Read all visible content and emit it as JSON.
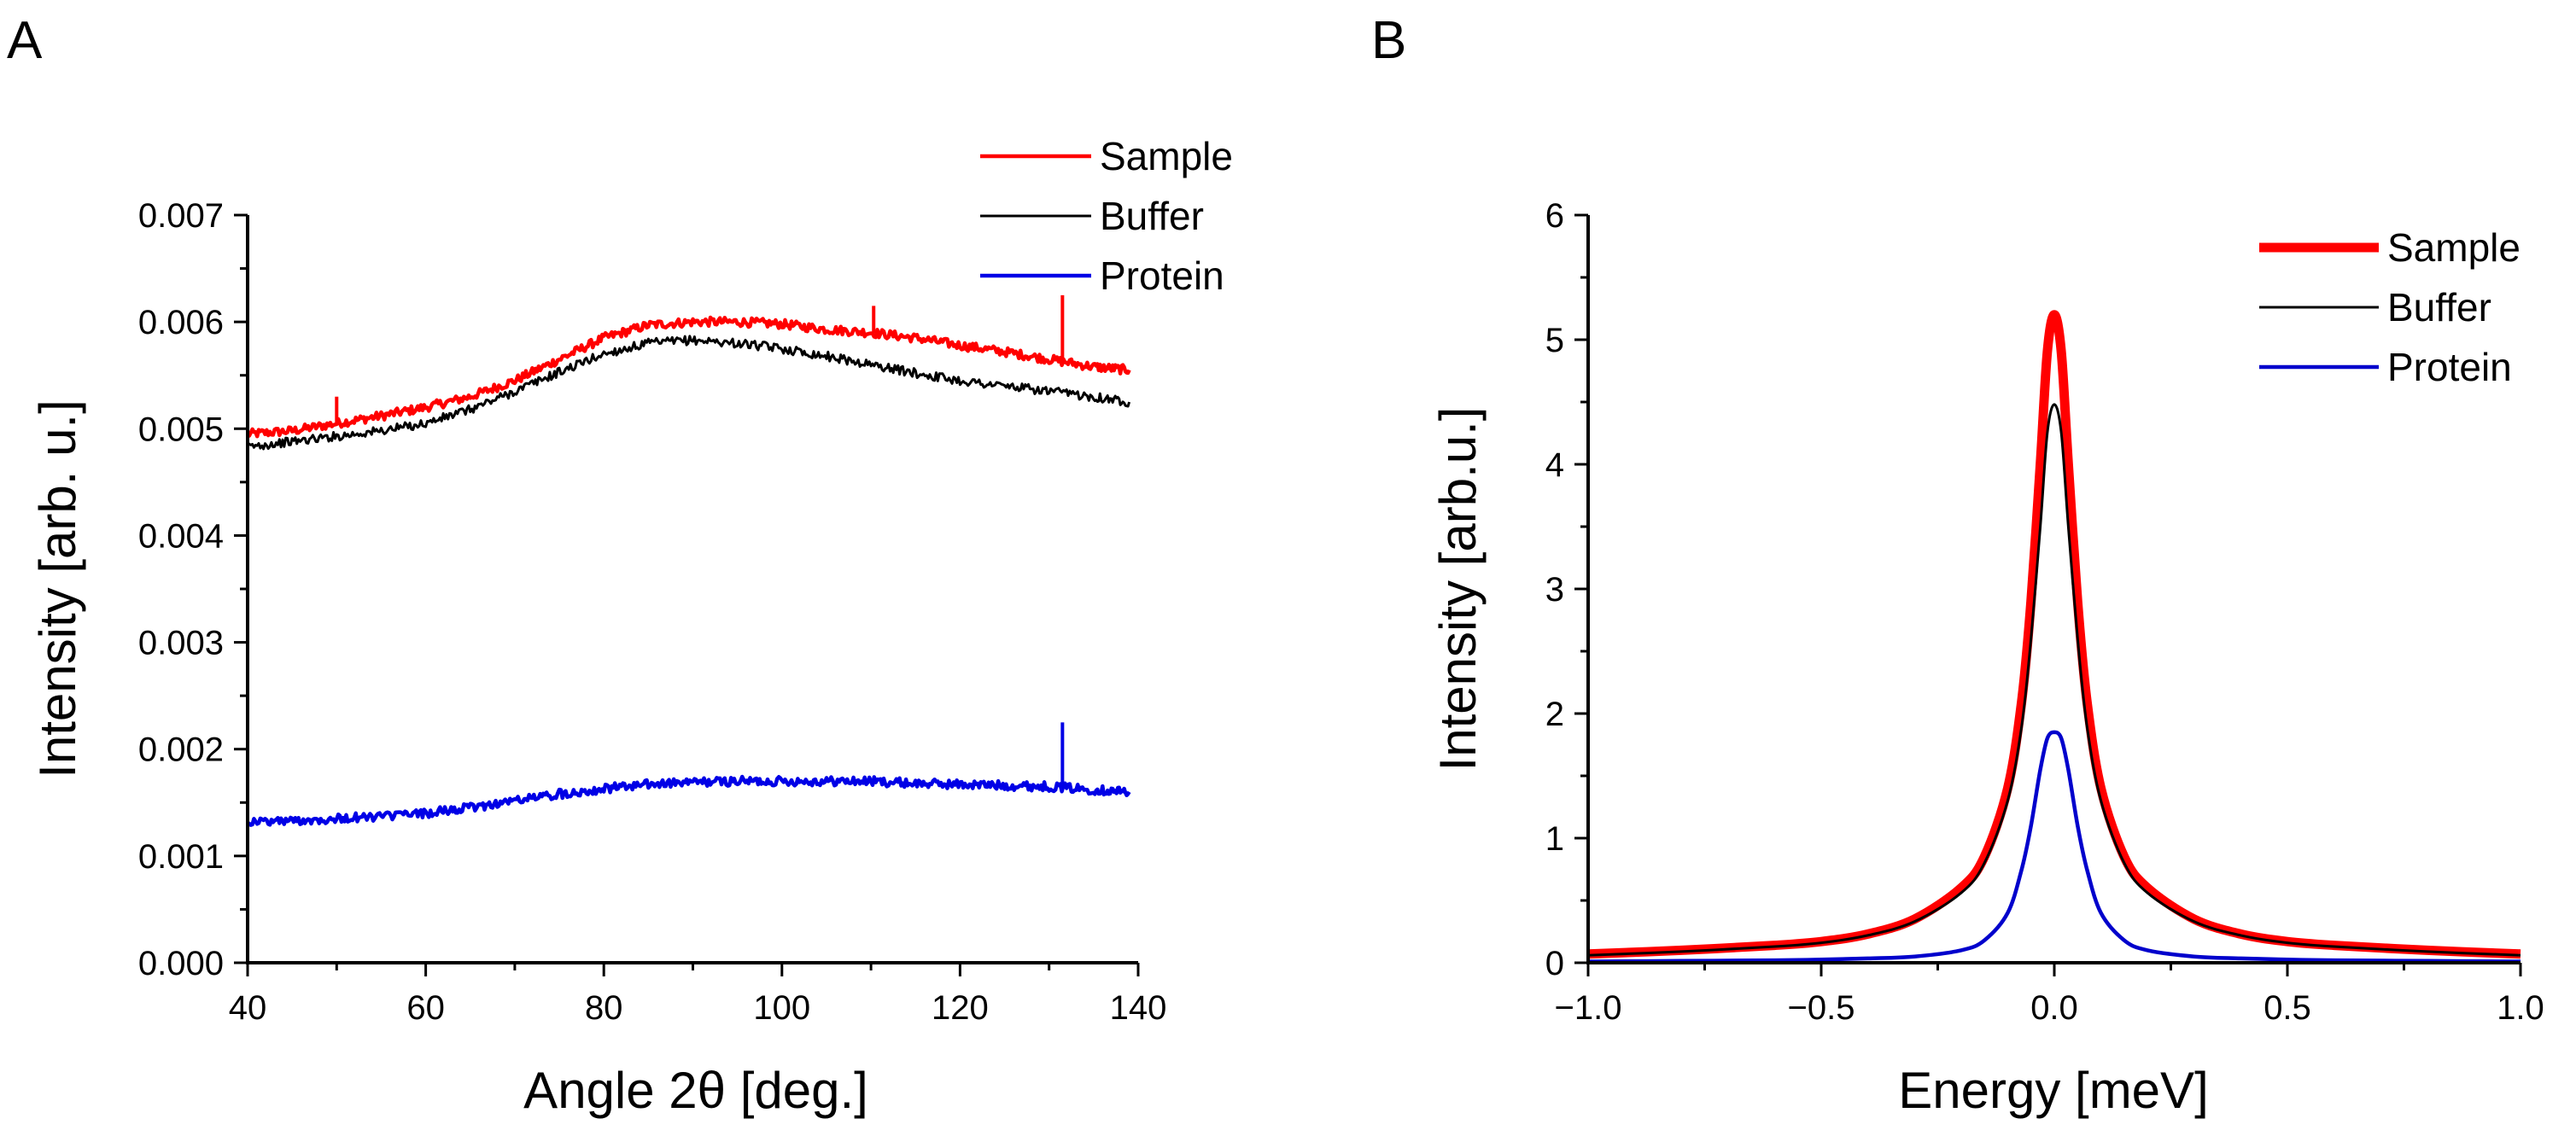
{
  "chart_data": [
    {
      "panel_label": "A",
      "type": "line",
      "title": "",
      "xlabel": "Angle 2θ [deg.]",
      "ylabel": "Intensity [arb. u.]",
      "xlim": [
        40,
        140
      ],
      "ylim": [
        0.0,
        0.007
      ],
      "xticks": [
        40,
        60,
        80,
        100,
        120,
        140
      ],
      "xtick_labels": [
        "40",
        "60",
        "80",
        "100",
        "120",
        "140"
      ],
      "yticks": [
        0.0,
        0.001,
        0.002,
        0.003,
        0.004,
        0.005,
        0.006,
        0.007
      ],
      "ytick_labels": [
        "0.000",
        "0.001",
        "0.002",
        "0.003",
        "0.004",
        "0.005",
        "0.006",
        "0.007"
      ],
      "grid": false,
      "legend_position": "top-right",
      "series": [
        {
          "name": "Sample",
          "color": "#ff0000",
          "x": [
            40,
            45,
            50,
            55,
            60,
            65,
            70,
            75,
            80,
            85,
            90,
            95,
            100,
            105,
            110,
            115,
            120,
            125,
            130,
            135,
            139
          ],
          "y": [
            0.00495,
            0.00498,
            0.00505,
            0.00512,
            0.0052,
            0.0053,
            0.00545,
            0.00565,
            0.00585,
            0.00597,
            0.006,
            0.006,
            0.00598,
            0.00593,
            0.0059,
            0.00585,
            0.00578,
            0.00572,
            0.00565,
            0.00558,
            0.00555
          ]
        },
        {
          "name": "Buffer",
          "color": "#000000",
          "x": [
            40,
            45,
            50,
            55,
            60,
            65,
            70,
            75,
            80,
            85,
            90,
            95,
            100,
            105,
            110,
            115,
            120,
            125,
            130,
            135,
            139
          ],
          "y": [
            0.00483,
            0.00488,
            0.00493,
            0.00498,
            0.00505,
            0.00518,
            0.00535,
            0.00553,
            0.0057,
            0.0058,
            0.00583,
            0.0058,
            0.00575,
            0.00568,
            0.0056,
            0.00552,
            0.00545,
            0.0054,
            0.00535,
            0.0053,
            0.00525
          ]
        },
        {
          "name": "Protein",
          "color": "#0000e6",
          "x": [
            40,
            45,
            50,
            55,
            60,
            65,
            70,
            75,
            80,
            85,
            90,
            95,
            100,
            105,
            110,
            115,
            120,
            125,
            130,
            135,
            139
          ],
          "y": [
            0.00132,
            0.00133,
            0.00135,
            0.00137,
            0.0014,
            0.00145,
            0.00152,
            0.00158,
            0.00163,
            0.00167,
            0.00169,
            0.0017,
            0.0017,
            0.0017,
            0.0017,
            0.00168,
            0.00167,
            0.00166,
            0.00165,
            0.00162,
            0.0016
          ]
        }
      ],
      "spikes": [
        {
          "series": "Sample",
          "x": 110.3,
          "y": 0.00615
        },
        {
          "series": "Sample",
          "x": 131.5,
          "y": 0.00625
        },
        {
          "series": "Protein",
          "x": 131.5,
          "y": 0.00225
        },
        {
          "series": "Sample",
          "x": 50.0,
          "y": 0.0053
        }
      ]
    },
    {
      "panel_label": "B",
      "type": "line",
      "title": "",
      "xlabel": "Energy [meV]",
      "ylabel": "Intensity [arb.u.]",
      "xlim": [
        -1.0,
        1.0
      ],
      "ylim": [
        0,
        6
      ],
      "xticks": [
        -1.0,
        -0.5,
        0.0,
        0.5,
        1.0
      ],
      "xtick_labels": [
        "−1.0",
        "−0.5",
        "0.0",
        "0.5",
        "1.0"
      ],
      "yticks": [
        0,
        1,
        2,
        3,
        4,
        5,
        6
      ],
      "ytick_labels": [
        "0",
        "1",
        "2",
        "3",
        "4",
        "5",
        "6"
      ],
      "grid": false,
      "legend_position": "top-right",
      "series": [
        {
          "name": "Sample",
          "color": "#ff0000",
          "x": [
            -1.0,
            -0.8,
            -0.6,
            -0.5,
            -0.4,
            -0.3,
            -0.2,
            -0.15,
            -0.1,
            -0.07,
            -0.05,
            -0.03,
            -0.015,
            0.0,
            0.015,
            0.03,
            0.05,
            0.07,
            0.1,
            0.15,
            0.2,
            0.3,
            0.4,
            0.5,
            0.6,
            0.8,
            1.0
          ],
          "y": [
            0.07,
            0.1,
            0.14,
            0.17,
            0.23,
            0.35,
            0.6,
            0.85,
            1.4,
            2.1,
            2.9,
            4.0,
            4.9,
            5.2,
            4.9,
            4.0,
            2.9,
            2.1,
            1.4,
            0.85,
            0.6,
            0.35,
            0.23,
            0.17,
            0.14,
            0.1,
            0.07
          ]
        },
        {
          "name": "Buffer",
          "color": "#000000",
          "x": [
            -1.0,
            -0.8,
            -0.6,
            -0.5,
            -0.4,
            -0.3,
            -0.2,
            -0.15,
            -0.1,
            -0.07,
            -0.05,
            -0.03,
            -0.015,
            0.0,
            0.015,
            0.03,
            0.05,
            0.07,
            0.1,
            0.15,
            0.2,
            0.3,
            0.4,
            0.5,
            0.6,
            0.8,
            1.0
          ],
          "y": [
            0.06,
            0.09,
            0.13,
            0.16,
            0.22,
            0.33,
            0.56,
            0.8,
            1.3,
            1.9,
            2.6,
            3.5,
            4.25,
            4.48,
            4.25,
            3.5,
            2.6,
            1.9,
            1.3,
            0.8,
            0.56,
            0.33,
            0.22,
            0.16,
            0.13,
            0.09,
            0.06
          ]
        },
        {
          "name": "Protein",
          "color": "#0000cc",
          "x": [
            -1.0,
            -0.8,
            -0.6,
            -0.5,
            -0.4,
            -0.3,
            -0.2,
            -0.15,
            -0.1,
            -0.07,
            -0.05,
            -0.03,
            -0.015,
            0.0,
            0.015,
            0.03,
            0.05,
            0.07,
            0.1,
            0.15,
            0.2,
            0.3,
            0.4,
            0.5,
            0.6,
            0.8,
            1.0
          ],
          "y": [
            0.01,
            0.015,
            0.02,
            0.025,
            0.035,
            0.05,
            0.1,
            0.18,
            0.4,
            0.75,
            1.1,
            1.55,
            1.8,
            1.85,
            1.8,
            1.55,
            1.1,
            0.75,
            0.4,
            0.18,
            0.1,
            0.05,
            0.035,
            0.025,
            0.02,
            0.015,
            0.01
          ]
        }
      ]
    }
  ]
}
